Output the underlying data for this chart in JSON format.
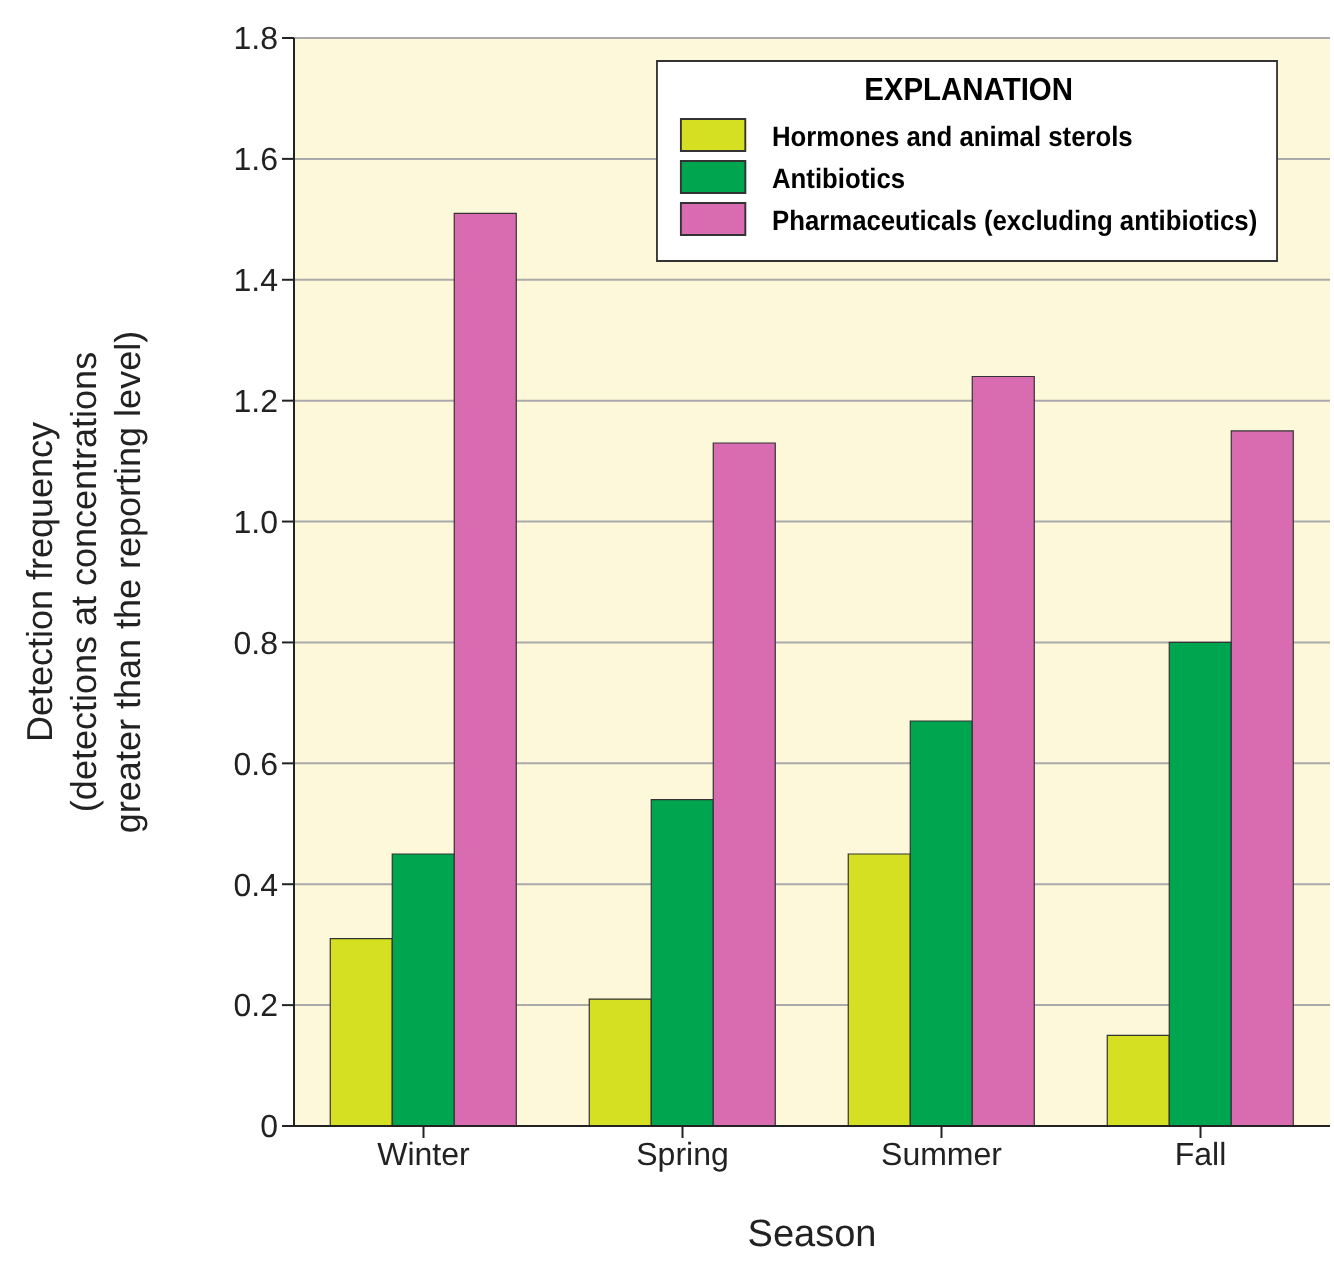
{
  "chart_data": {
    "type": "bar",
    "xlabel": "Season",
    "ylabel": "Detection frequency\n(detections at concentrations\ngreater than the reporting level)",
    "legend_title": "EXPLANATION",
    "categories": [
      "Winter",
      "Spring",
      "Summer",
      "Fall"
    ],
    "series": [
      {
        "name": "Hormones and animal sterols",
        "color": "#d4e021",
        "values": [
          0.31,
          0.21,
          0.45,
          0.15
        ]
      },
      {
        "name": "Antibiotics",
        "color": "#00a550",
        "values": [
          0.45,
          0.54,
          0.67,
          0.8
        ]
      },
      {
        "name": "Pharmaceuticals (excluding antibiotics)",
        "color": "#d96bb0",
        "values": [
          1.51,
          1.13,
          1.24,
          1.15
        ]
      }
    ],
    "ylim": [
      0,
      1.8
    ],
    "yticks": [
      0,
      0.2,
      0.4,
      0.6,
      0.8,
      {
        "value": 1,
        "label": "1.0"
      },
      1.2,
      1.4,
      1.6,
      1.8
    ],
    "grid": "y",
    "legend": "top right"
  }
}
